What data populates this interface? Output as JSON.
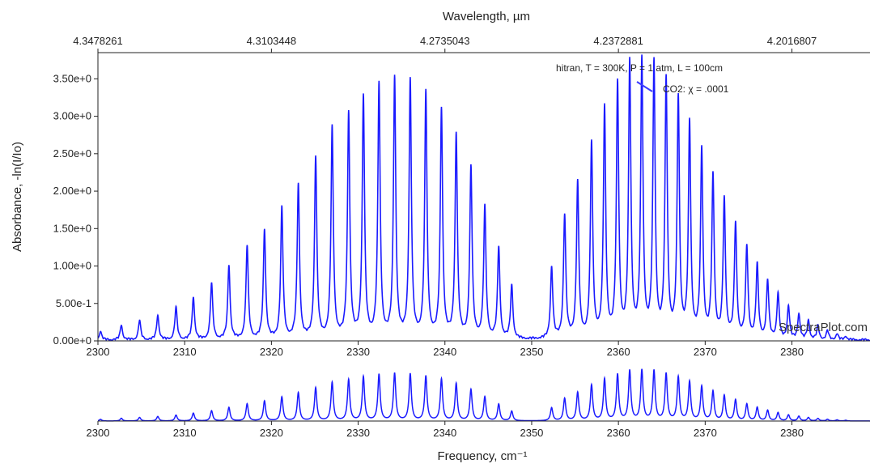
{
  "page": {
    "watermark": "SpectraPlot.com"
  },
  "colors": {
    "trace": "#1a1aff",
    "annotation_series": "#3a3aff",
    "axis": "#222222",
    "background": "#ffffff"
  },
  "chart_data": [
    {
      "type": "line",
      "title": "",
      "xlabel": "Frequency, cm⁻¹",
      "ylabel": "Absorbance, -ln(I/Io)",
      "top_axis_label": "Wavelength, µm",
      "top_axis_ticks": [
        "4.3478261",
        "4.3103448",
        "4.2735043",
        "4.2372881",
        "4.2016807"
      ],
      "top_axis_tick_positions": [
        2300,
        2320,
        2340,
        2360,
        2380
      ],
      "xlim": [
        2300,
        2389
      ],
      "ylim": [
        0,
        3.85
      ],
      "x_ticks": [
        2300,
        2310,
        2320,
        2330,
        2340,
        2350,
        2360,
        2370,
        2380
      ],
      "y_tick_values": [
        0,
        0.5,
        1.0,
        1.5,
        2.0,
        2.5,
        3.0,
        3.5
      ],
      "y_tick_labels": [
        "0.00e+0",
        "5.00e-1",
        "1.00e+0",
        "1.50e+0",
        "2.00e+0",
        "2.50e+0",
        "3.00e+0",
        "3.50e+0"
      ],
      "grid": false,
      "annotation_header": "hitran, T = 300K, P = 1 atm, L = 100cm",
      "series": [
        {
          "name": "CO2: χ = .0001",
          "line_type": "absorption lines (Lorentzian peaks)",
          "peak_positions": [
            2300.3,
            2302.7,
            2304.8,
            2306.9,
            2309.0,
            2311.0,
            2313.1,
            2315.1,
            2317.2,
            2319.2,
            2321.2,
            2323.1,
            2325.1,
            2327.0,
            2328.9,
            2330.6,
            2332.4,
            2334.2,
            2336.0,
            2337.8,
            2339.6,
            2341.3,
            2343.0,
            2344.6,
            2346.2,
            2347.7,
            2352.3,
            2353.8,
            2355.3,
            2356.9,
            2358.4,
            2359.9,
            2361.3,
            2362.7,
            2364.1,
            2365.5,
            2366.9,
            2368.2,
            2369.6,
            2370.9,
            2372.2,
            2373.5,
            2374.8,
            2376.0,
            2377.2,
            2378.4,
            2379.6,
            2380.8,
            2381.9,
            2383.0,
            2384.1,
            2385.2,
            2386.2
          ],
          "peak_values": [
            0.12,
            0.2,
            0.26,
            0.33,
            0.43,
            0.57,
            0.75,
            0.99,
            1.25,
            1.46,
            1.75,
            2.06,
            2.42,
            2.81,
            3.01,
            3.22,
            3.39,
            3.47,
            3.43,
            3.27,
            3.05,
            2.72,
            2.28,
            1.75,
            1.22,
            0.71,
            0.95,
            1.64,
            2.07,
            2.6,
            3.05,
            3.37,
            3.65,
            3.68,
            3.65,
            3.43,
            3.18,
            2.85,
            2.5,
            2.15,
            1.84,
            1.52,
            1.22,
            0.98,
            0.77,
            0.6,
            0.44,
            0.34,
            0.25,
            0.18,
            0.12,
            0.08,
            0.05
          ]
        }
      ]
    },
    {
      "type": "line",
      "title": "",
      "xlabel": "Frequency, cm⁻¹",
      "ylabel": "",
      "xlim": [
        2300,
        2389
      ],
      "x_ticks": [
        2300,
        2310,
        2320,
        2330,
        2340,
        2350,
        2360,
        2370,
        2380
      ],
      "grid": false,
      "series": [
        {
          "name": "",
          "line_type": "overview of absorption spectrum",
          "peak_positions": [
            2300.3,
            2302.7,
            2304.8,
            2306.9,
            2309.0,
            2311.0,
            2313.1,
            2315.1,
            2317.2,
            2319.2,
            2321.2,
            2323.1,
            2325.1,
            2327.0,
            2328.9,
            2330.6,
            2332.4,
            2334.2,
            2336.0,
            2337.8,
            2339.6,
            2341.3,
            2343.0,
            2344.6,
            2346.2,
            2347.7,
            2352.3,
            2353.8,
            2355.3,
            2356.9,
            2358.4,
            2359.9,
            2361.3,
            2362.7,
            2364.1,
            2365.5,
            2366.9,
            2368.2,
            2369.6,
            2370.9,
            2372.2,
            2373.5,
            2374.8,
            2376.0,
            2377.2,
            2378.4,
            2379.6,
            2380.8,
            2381.9,
            2383.0,
            2384.1,
            2385.2,
            2386.2
          ],
          "peak_values": [
            0.12,
            0.2,
            0.26,
            0.33,
            0.43,
            0.57,
            0.75,
            0.99,
            1.25,
            1.46,
            1.75,
            2.06,
            2.42,
            2.81,
            3.01,
            3.22,
            3.39,
            3.47,
            3.43,
            3.27,
            3.05,
            2.72,
            2.28,
            1.75,
            1.22,
            0.71,
            0.95,
            1.64,
            2.07,
            2.6,
            3.05,
            3.37,
            3.65,
            3.68,
            3.65,
            3.43,
            3.18,
            2.85,
            2.5,
            2.15,
            1.84,
            1.52,
            1.22,
            0.98,
            0.77,
            0.6,
            0.44,
            0.34,
            0.25,
            0.18,
            0.12,
            0.08,
            0.05
          ]
        }
      ]
    }
  ]
}
